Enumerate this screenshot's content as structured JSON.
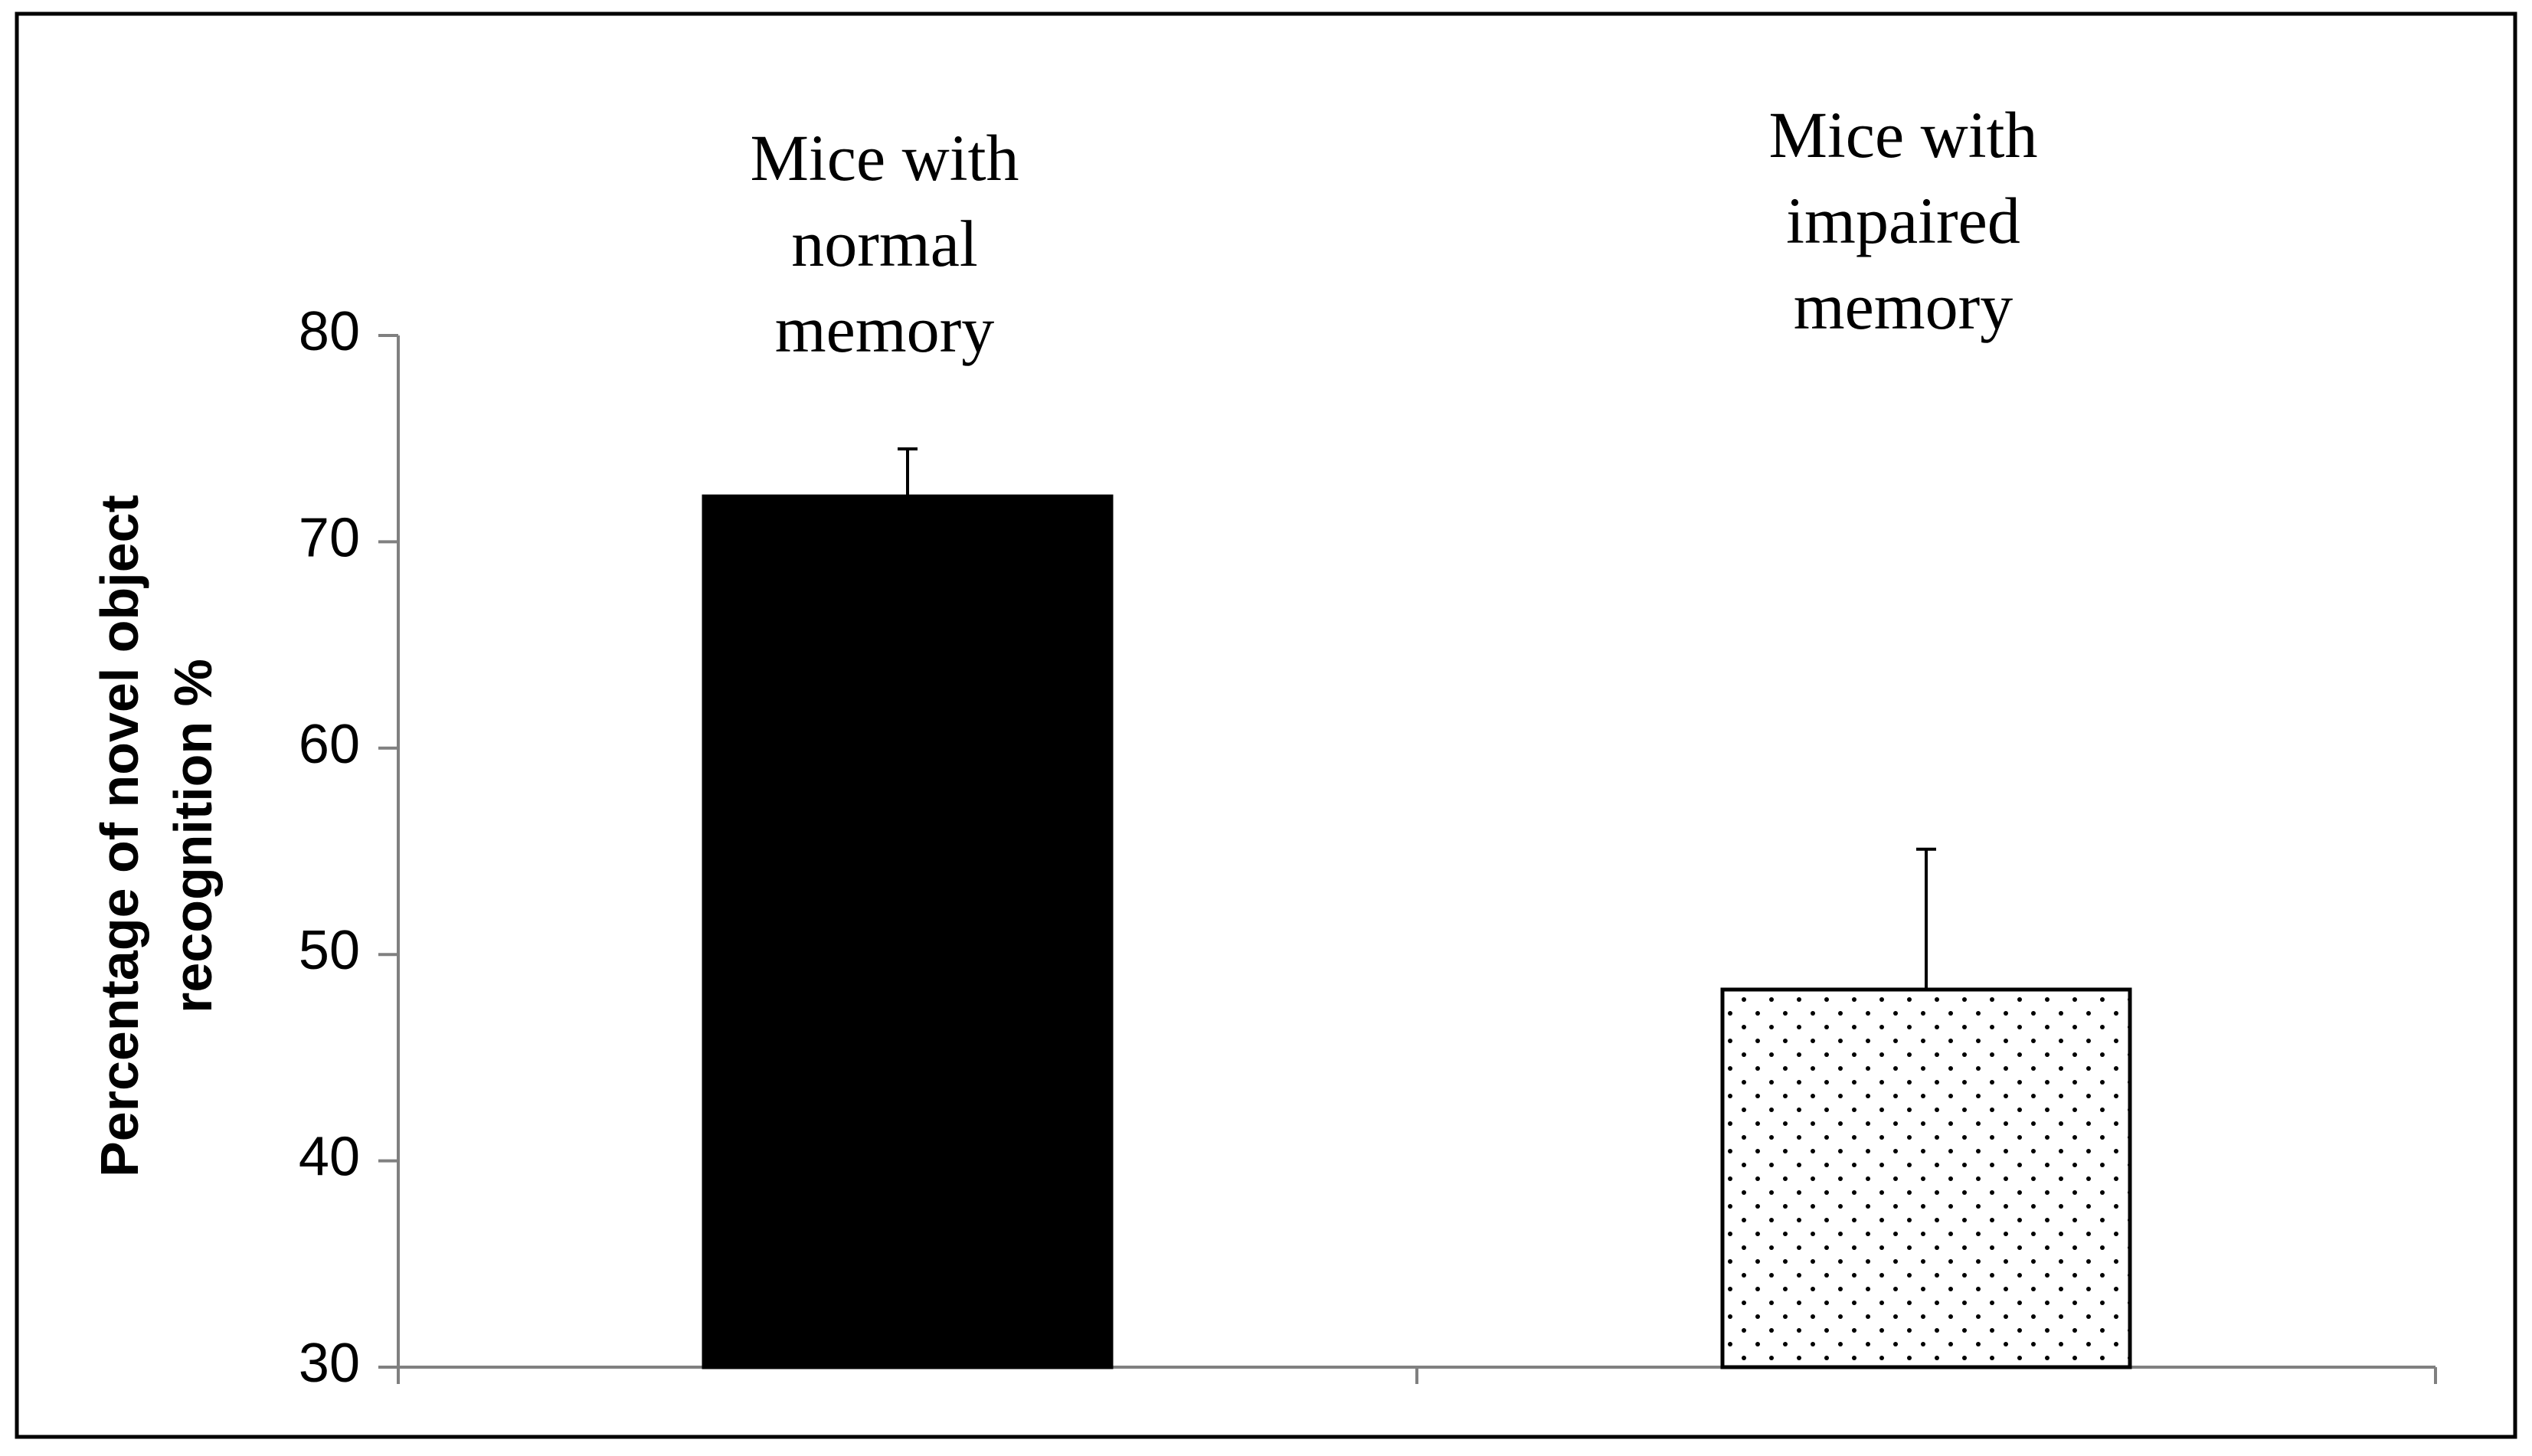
{
  "chart_data": {
    "type": "bar",
    "title": "",
    "xlabel": "",
    "ylabel": [
      "Percentage of novel object",
      "recognition %"
    ],
    "ylim": [
      30,
      80
    ],
    "yticks": [
      30,
      40,
      50,
      60,
      70,
      80
    ],
    "grid": false,
    "legend": "none",
    "categories": [
      [
        "Mice with",
        "normal",
        "memory"
      ],
      [
        "Mice with",
        "impaired",
        "memory"
      ]
    ],
    "values": [
      72.2,
      48.3
    ],
    "error_upper": [
      2.3,
      6.8
    ],
    "fills": [
      "solid",
      "dotted"
    ],
    "colors": {
      "bar": "#000000",
      "axis": "#808080",
      "frame": "#000000"
    }
  }
}
